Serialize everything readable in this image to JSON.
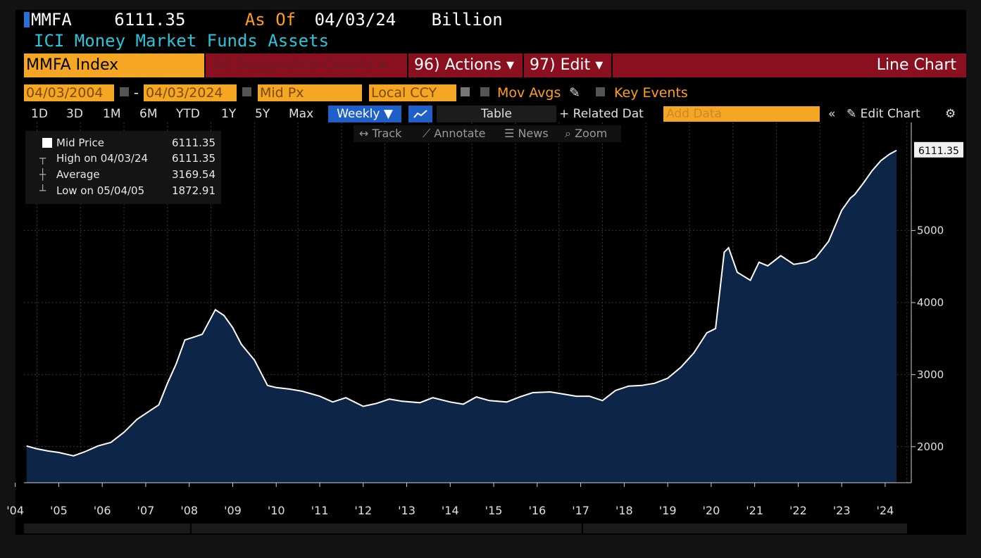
{
  "header": {
    "ticker": "MMFA",
    "price": "6111.35",
    "as_of_label": "As Of",
    "as_of_date": "04/03/24",
    "unit": "Billion",
    "title": "ICI Money Market Funds Assets"
  },
  "menu": {
    "ticker_input": "MMFA Index",
    "suggested": "98 Suggested Charts",
    "actions": "96) Actions",
    "edit": "97) Edit",
    "chart_type": "Line Chart"
  },
  "controls": {
    "start_date": "04/03/2004",
    "end_date": "04/03/2024",
    "field": "Mid Px",
    "currency": "Local CCY",
    "mov_avgs": "Mov Avgs",
    "key_events": "Key Events",
    "ranges": [
      "1D",
      "3D",
      "1M",
      "6M",
      "YTD",
      "1Y",
      "5Y",
      "Max"
    ],
    "frequency": "Weekly",
    "table_tab": "Table",
    "related": "+ Related Dat",
    "add_data_placeholder": "Add Data",
    "edit_chart": "Edit Chart"
  },
  "tools": {
    "track": "Track",
    "annotate": "Annotate",
    "news": "News",
    "zoom": "Zoom"
  },
  "legend": {
    "rows": [
      {
        "label": "Mid Price",
        "value": "6111.35"
      },
      {
        "label": "High on 04/03/24",
        "value": "6111.35"
      },
      {
        "label": "Average",
        "value": "3169.54"
      },
      {
        "label": "Low on 05/04/05",
        "value": "1872.91"
      }
    ]
  },
  "colors": {
    "area_fill": "#0d2547",
    "line": "#ffffff",
    "accent_orange": "#f5a623",
    "menu_red": "#8a1020",
    "title_cyan": "#27c6d9"
  },
  "chart_data": {
    "type": "area",
    "title": "ICI Money Market Funds Assets",
    "xlabel": "",
    "ylabel": "",
    "ylim": [
      1500,
      6500
    ],
    "y_ticks": [
      2000,
      3000,
      4000,
      5000
    ],
    "x_ticks": [
      "'04",
      "'05",
      "'06",
      "'07",
      "'08",
      "'09",
      "'10",
      "'11",
      "'12",
      "'13",
      "'14",
      "'15",
      "'16",
      "'17",
      "'18",
      "'19",
      "'20",
      "'21",
      "'22",
      "'23",
      "'24"
    ],
    "last_value_label": "6111.35",
    "grid": true,
    "series": [
      {
        "name": "Mid Price",
        "x": [
          2004.26,
          2004.5,
          2004.75,
          2005.0,
          2005.34,
          2005.6,
          2005.9,
          2006.2,
          2006.5,
          2006.8,
          2007.0,
          2007.3,
          2007.5,
          2007.7,
          2007.9,
          2008.1,
          2008.3,
          2008.6,
          2008.8,
          2009.0,
          2009.2,
          2009.5,
          2009.8,
          2010.0,
          2010.3,
          2010.6,
          2011.0,
          2011.3,
          2011.6,
          2012.0,
          2012.3,
          2012.6,
          2012.9,
          2013.3,
          2013.6,
          2014.0,
          2014.3,
          2014.6,
          2014.9,
          2015.3,
          2015.6,
          2015.9,
          2016.3,
          2016.6,
          2016.9,
          2017.2,
          2017.5,
          2017.8,
          2018.1,
          2018.4,
          2018.7,
          2019.0,
          2019.3,
          2019.6,
          2019.9,
          2020.1,
          2020.3,
          2020.4,
          2020.6,
          2020.9,
          2021.1,
          2021.3,
          2021.6,
          2021.9,
          2022.2,
          2022.4,
          2022.7,
          2023.0,
          2023.2,
          2023.3,
          2023.5,
          2023.7,
          2023.9,
          2024.1,
          2024.26
        ],
        "values": [
          2010,
          1970,
          1940,
          1920,
          1873,
          1930,
          2010,
          2060,
          2200,
          2380,
          2460,
          2580,
          2880,
          3150,
          3480,
          3520,
          3560,
          3900,
          3820,
          3650,
          3420,
          3200,
          2850,
          2820,
          2800,
          2770,
          2700,
          2620,
          2680,
          2560,
          2600,
          2660,
          2630,
          2610,
          2680,
          2620,
          2590,
          2690,
          2640,
          2620,
          2690,
          2750,
          2760,
          2730,
          2700,
          2700,
          2640,
          2780,
          2840,
          2850,
          2880,
          2950,
          3100,
          3300,
          3580,
          3640,
          4700,
          4760,
          4420,
          4310,
          4560,
          4510,
          4650,
          4530,
          4560,
          4620,
          4850,
          5280,
          5450,
          5500,
          5660,
          5830,
          5970,
          6060,
          6111.35
        ]
      }
    ]
  }
}
